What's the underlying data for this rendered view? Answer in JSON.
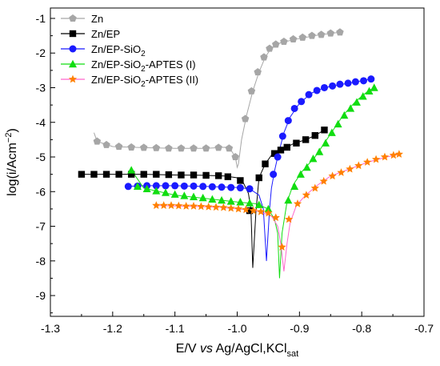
{
  "chart_data": {
    "type": "line",
    "xlabel": {
      "main": "E/V ",
      "italic": "vs",
      "after": " Ag/AgCl,KCl",
      "sub": "sat"
    },
    "ylabel": {
      "main": "log(i/Acm",
      "sup": "−2",
      "close": ")"
    },
    "xlim": [
      -1.3,
      -0.7
    ],
    "ylim": [
      -9.6,
      -0.7
    ],
    "xticks": [
      -1.3,
      -1.2,
      -1.1,
      -1.0,
      -0.9,
      -0.8,
      -0.7
    ],
    "xtick_labels": [
      "-1.3",
      "-1.2",
      "-1.1",
      "-1.0",
      "-0.9",
      "-0.8",
      "-0.7"
    ],
    "yticks": [
      -9,
      -8,
      -7,
      -6,
      -5,
      -4,
      -3,
      -2,
      -1
    ],
    "ytick_labels": [
      "-9",
      "-8",
      "-7",
      "-6",
      "-5",
      "-4",
      "-3",
      "-2",
      "-1"
    ],
    "grid": false,
    "legend_position": "top-left",
    "series": [
      {
        "name": "Zn",
        "name_parts": {
          "main": "Zn"
        },
        "color": "#a6a6a6",
        "marker": "pentagon",
        "line": [
          [
            -1.23,
            -4.3
          ],
          [
            -1.225,
            -4.55
          ],
          [
            -1.2,
            -4.7
          ],
          [
            -1.15,
            -4.73
          ],
          [
            -1.1,
            -4.75
          ],
          [
            -1.05,
            -4.75
          ],
          [
            -1.02,
            -4.72
          ],
          [
            -1.01,
            -4.8
          ],
          [
            -1.003,
            -5.0
          ],
          [
            -1.0,
            -5.3
          ],
          [
            -0.998,
            -5.2
          ],
          [
            -0.993,
            -4.5
          ],
          [
            -0.985,
            -3.8
          ],
          [
            -0.975,
            -3.1
          ],
          [
            -0.965,
            -2.55
          ],
          [
            -0.955,
            -2.12
          ],
          [
            -0.945,
            -1.85
          ],
          [
            -0.93,
            -1.7
          ],
          [
            -0.9,
            -1.58
          ],
          [
            -0.87,
            -1.48
          ],
          [
            -0.835,
            -1.4
          ]
        ],
        "markers": [
          [
            -1.225,
            -4.55
          ],
          [
            -1.21,
            -4.65
          ],
          [
            -1.19,
            -4.7
          ],
          [
            -1.17,
            -4.72
          ],
          [
            -1.15,
            -4.73
          ],
          [
            -1.13,
            -4.74
          ],
          [
            -1.11,
            -4.75
          ],
          [
            -1.09,
            -4.75
          ],
          [
            -1.07,
            -4.75
          ],
          [
            -1.05,
            -4.75
          ],
          [
            -1.03,
            -4.73
          ],
          [
            -1.013,
            -4.75
          ],
          [
            -1.003,
            -5.0
          ],
          [
            -0.987,
            -3.9
          ],
          [
            -0.977,
            -3.1
          ],
          [
            -0.967,
            -2.55
          ],
          [
            -0.957,
            -2.12
          ],
          [
            -0.948,
            -1.87
          ],
          [
            -0.938,
            -1.75
          ],
          [
            -0.925,
            -1.67
          ],
          [
            -0.91,
            -1.6
          ],
          [
            -0.895,
            -1.55
          ],
          [
            -0.88,
            -1.5
          ],
          [
            -0.865,
            -1.47
          ],
          [
            -0.85,
            -1.43
          ],
          [
            -0.835,
            -1.4
          ]
        ]
      },
      {
        "name": "Zn/EP",
        "name_parts": {
          "main": "Zn/EP"
        },
        "color": "#000000",
        "marker": "square",
        "line": [
          [
            -1.25,
            -5.5
          ],
          [
            -1.2,
            -5.5
          ],
          [
            -1.15,
            -5.5
          ],
          [
            -1.1,
            -5.52
          ],
          [
            -1.05,
            -5.53
          ],
          [
            -1.02,
            -5.55
          ],
          [
            -1.0,
            -5.6
          ],
          [
            -0.99,
            -5.75
          ],
          [
            -0.982,
            -6.05
          ],
          [
            -0.978,
            -6.5
          ],
          [
            -0.975,
            -8.2
          ],
          [
            -0.97,
            -6.6
          ],
          [
            -0.965,
            -5.6
          ],
          [
            -0.955,
            -5.2
          ],
          [
            -0.945,
            -4.95
          ],
          [
            -0.93,
            -4.8
          ],
          [
            -0.91,
            -4.62
          ],
          [
            -0.89,
            -4.5
          ],
          [
            -0.875,
            -4.38
          ],
          [
            -0.86,
            -4.22
          ]
        ],
        "markers": [
          [
            -1.25,
            -5.5
          ],
          [
            -1.23,
            -5.5
          ],
          [
            -1.21,
            -5.5
          ],
          [
            -1.19,
            -5.5
          ],
          [
            -1.17,
            -5.5
          ],
          [
            -1.15,
            -5.5
          ],
          [
            -1.13,
            -5.5
          ],
          [
            -1.11,
            -5.51
          ],
          [
            -1.09,
            -5.52
          ],
          [
            -1.07,
            -5.52
          ],
          [
            -1.05,
            -5.53
          ],
          [
            -1.03,
            -5.54
          ],
          [
            -1.015,
            -5.57
          ],
          [
            -0.995,
            -5.68
          ],
          [
            -0.98,
            -6.55
          ],
          [
            -0.965,
            -5.6
          ],
          [
            -0.955,
            -5.2
          ],
          [
            -0.94,
            -4.9
          ],
          [
            -0.93,
            -4.8
          ],
          [
            -0.92,
            -4.72
          ],
          [
            -0.905,
            -4.6
          ],
          [
            -0.89,
            -4.5
          ],
          [
            -0.875,
            -4.38
          ],
          [
            -0.86,
            -4.22
          ]
        ]
      },
      {
        "name": "Zn/EP-SiO2",
        "name_parts": {
          "main": "Zn/EP-SiO",
          "sub": "2"
        },
        "color": "#1a1aff",
        "marker": "circle",
        "line": [
          [
            -1.18,
            -5.85
          ],
          [
            -1.15,
            -5.83
          ],
          [
            -1.1,
            -5.83
          ],
          [
            -1.05,
            -5.85
          ],
          [
            -1.0,
            -5.88
          ],
          [
            -0.98,
            -5.92
          ],
          [
            -0.965,
            -6.1
          ],
          [
            -0.958,
            -6.5
          ],
          [
            -0.953,
            -8.0
          ],
          [
            -0.948,
            -6.5
          ],
          [
            -0.945,
            -5.9
          ],
          [
            -0.94,
            -5.4
          ],
          [
            -0.935,
            -5.0
          ],
          [
            -0.925,
            -4.3
          ],
          [
            -0.915,
            -3.85
          ],
          [
            -0.9,
            -3.45
          ],
          [
            -0.88,
            -3.15
          ],
          [
            -0.86,
            -3.0
          ],
          [
            -0.83,
            -2.9
          ],
          [
            -0.8,
            -2.8
          ],
          [
            -0.785,
            -2.75
          ]
        ],
        "markers": [
          [
            -1.175,
            -5.85
          ],
          [
            -1.16,
            -5.84
          ],
          [
            -1.145,
            -5.83
          ],
          [
            -1.13,
            -5.83
          ],
          [
            -1.115,
            -5.83
          ],
          [
            -1.1,
            -5.83
          ],
          [
            -1.085,
            -5.84
          ],
          [
            -1.07,
            -5.84
          ],
          [
            -1.055,
            -5.85
          ],
          [
            -1.04,
            -5.86
          ],
          [
            -1.025,
            -5.87
          ],
          [
            -1.01,
            -5.88
          ],
          [
            -0.995,
            -5.89
          ],
          [
            -0.98,
            -5.92
          ],
          [
            -0.942,
            -5.5
          ],
          [
            -0.935,
            -5.0
          ],
          [
            -0.927,
            -4.4
          ],
          [
            -0.918,
            -3.95
          ],
          [
            -0.908,
            -3.6
          ],
          [
            -0.897,
            -3.4
          ],
          [
            -0.885,
            -3.2
          ],
          [
            -0.872,
            -3.08
          ],
          [
            -0.86,
            -3.0
          ],
          [
            -0.847,
            -2.95
          ],
          [
            -0.835,
            -2.9
          ],
          [
            -0.822,
            -2.87
          ],
          [
            -0.81,
            -2.83
          ],
          [
            -0.797,
            -2.8
          ],
          [
            -0.785,
            -2.75
          ]
        ]
      },
      {
        "name": "Zn/EP-SiO2-APTES (I)",
        "name_parts": {
          "main": "Zn/EP-SiO",
          "sub": "2",
          "after": "-APTES (I)"
        },
        "color": "#11dd11",
        "marker": "triangle",
        "line": [
          [
            -1.17,
            -5.38
          ],
          [
            -1.15,
            -5.9
          ],
          [
            -1.1,
            -6.1
          ],
          [
            -1.05,
            -6.2
          ],
          [
            -1.0,
            -6.3
          ],
          [
            -0.97,
            -6.35
          ],
          [
            -0.95,
            -6.5
          ],
          [
            -0.94,
            -6.8
          ],
          [
            -0.935,
            -7.2
          ],
          [
            -0.932,
            -8.5
          ],
          [
            -0.928,
            -7.2
          ],
          [
            -0.92,
            -6.3
          ],
          [
            -0.91,
            -5.8
          ],
          [
            -0.895,
            -5.4
          ],
          [
            -0.875,
            -5.0
          ],
          [
            -0.86,
            -4.6
          ],
          [
            -0.845,
            -4.2
          ],
          [
            -0.83,
            -3.8
          ],
          [
            -0.81,
            -3.4
          ],
          [
            -0.79,
            -3.1
          ],
          [
            -0.78,
            -3.0
          ]
        ],
        "markers": [
          [
            -1.17,
            -5.38
          ],
          [
            -1.16,
            -5.85
          ],
          [
            -1.145,
            -5.92
          ],
          [
            -1.13,
            -5.98
          ],
          [
            -1.115,
            -6.03
          ],
          [
            -1.1,
            -6.08
          ],
          [
            -1.085,
            -6.12
          ],
          [
            -1.07,
            -6.15
          ],
          [
            -1.055,
            -6.18
          ],
          [
            -1.04,
            -6.22
          ],
          [
            -1.025,
            -6.25
          ],
          [
            -1.01,
            -6.28
          ],
          [
            -0.995,
            -6.3
          ],
          [
            -0.98,
            -6.33
          ],
          [
            -0.965,
            -6.38
          ],
          [
            -0.95,
            -6.5
          ],
          [
            -0.918,
            -6.25
          ],
          [
            -0.908,
            -5.85
          ],
          [
            -0.898,
            -5.5
          ],
          [
            -0.888,
            -5.3
          ],
          [
            -0.878,
            -5.05
          ],
          [
            -0.868,
            -4.85
          ],
          [
            -0.858,
            -4.6
          ],
          [
            -0.848,
            -4.3
          ],
          [
            -0.838,
            -4.05
          ],
          [
            -0.828,
            -3.8
          ],
          [
            -0.818,
            -3.6
          ],
          [
            -0.808,
            -3.42
          ],
          [
            -0.798,
            -3.25
          ],
          [
            -0.788,
            -3.1
          ],
          [
            -0.78,
            -3.0
          ]
        ]
      },
      {
        "name": "Zn/EP-SiO2-APTES (II)",
        "name_parts": {
          "main": "Zn/EP-SiO",
          "sub": "2",
          "after": "-APTES (II)"
        },
        "color": "#ff8000",
        "line_color": "#ff66cc",
        "marker": "star",
        "line": [
          [
            -1.13,
            -6.4
          ],
          [
            -1.08,
            -6.42
          ],
          [
            -1.03,
            -6.45
          ],
          [
            -1.0,
            -6.5
          ],
          [
            -0.97,
            -6.55
          ],
          [
            -0.945,
            -6.7
          ],
          [
            -0.935,
            -7.0
          ],
          [
            -0.93,
            -7.5
          ],
          [
            -0.925,
            -8.3
          ],
          [
            -0.92,
            -7.5
          ],
          [
            -0.915,
            -6.9
          ],
          [
            -0.905,
            -6.4
          ],
          [
            -0.89,
            -6.1
          ],
          [
            -0.87,
            -5.8
          ],
          [
            -0.85,
            -5.55
          ],
          [
            -0.82,
            -5.35
          ],
          [
            -0.79,
            -5.15
          ],
          [
            -0.76,
            -5.0
          ],
          [
            -0.74,
            -4.92
          ]
        ],
        "markers": [
          [
            -1.13,
            -6.4
          ],
          [
            -1.118,
            -6.4
          ],
          [
            -1.106,
            -6.4
          ],
          [
            -1.094,
            -6.41
          ],
          [
            -1.082,
            -6.42
          ],
          [
            -1.07,
            -6.42
          ],
          [
            -1.058,
            -6.43
          ],
          [
            -1.046,
            -6.44
          ],
          [
            -1.034,
            -6.45
          ],
          [
            -1.022,
            -6.46
          ],
          [
            -1.01,
            -6.48
          ],
          [
            -0.998,
            -6.5
          ],
          [
            -0.986,
            -6.52
          ],
          [
            -0.974,
            -6.55
          ],
          [
            -0.962,
            -6.58
          ],
          [
            -0.95,
            -6.62
          ],
          [
            -0.938,
            -6.75
          ],
          [
            -0.928,
            -7.6
          ],
          [
            -0.917,
            -6.8
          ],
          [
            -0.903,
            -6.35
          ],
          [
            -0.889,
            -6.1
          ],
          [
            -0.875,
            -5.9
          ],
          [
            -0.861,
            -5.7
          ],
          [
            -0.847,
            -5.55
          ],
          [
            -0.833,
            -5.45
          ],
          [
            -0.819,
            -5.35
          ],
          [
            -0.805,
            -5.25
          ],
          [
            -0.791,
            -5.15
          ],
          [
            -0.777,
            -5.07
          ],
          [
            -0.763,
            -5.0
          ],
          [
            -0.749,
            -4.95
          ],
          [
            -0.74,
            -4.92
          ]
        ]
      }
    ]
  }
}
